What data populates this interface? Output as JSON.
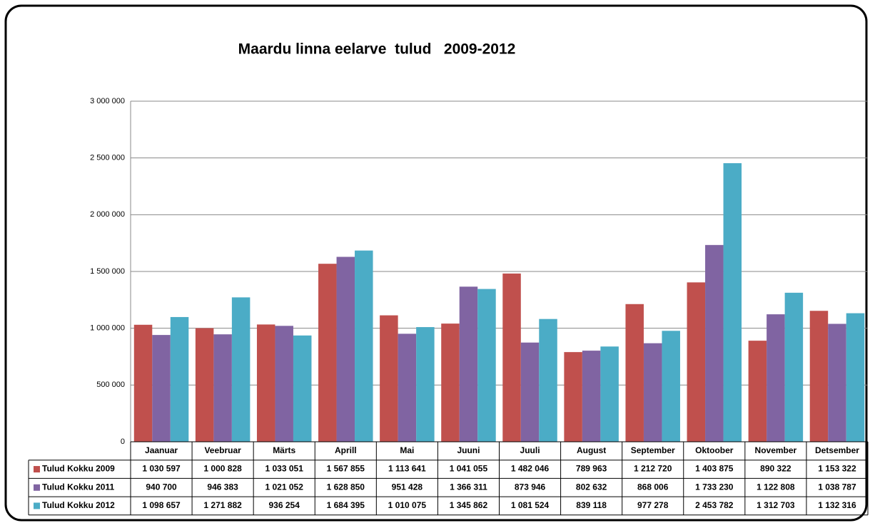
{
  "chart_data": {
    "type": "bar",
    "title": "Maardu linna eelarve  tulud   2009-2012",
    "categories": [
      "Jaanuar",
      "Veebruar",
      "Märts",
      "Aprill",
      "Mai",
      "Juuni",
      "Juuli",
      "August",
      "September",
      "Oktoober",
      "November",
      "Detsember"
    ],
    "series": [
      {
        "name": "Tulud Kokku 2009",
        "color": "#c0504d",
        "values": [
          1030597,
          1000828,
          1033051,
          1567855,
          1113641,
          1041055,
          1482046,
          789963,
          1212720,
          1403875,
          890322,
          1153322
        ],
        "value_labels": [
          "1 030 597",
          "1 000 828",
          "1 033 051",
          "1 567 855",
          "1 113 641",
          "1 041 055",
          "1 482 046",
          "789 963",
          "1 212 720",
          "1 403 875",
          "890 322",
          "1 153 322"
        ]
      },
      {
        "name": "Tulud Kokku 2011",
        "color": "#8064a2",
        "values": [
          940700,
          946383,
          1021052,
          1628850,
          951428,
          1366311,
          873946,
          802632,
          868006,
          1733230,
          1122808,
          1038787
        ],
        "value_labels": [
          "940 700",
          "946 383",
          "1 021 052",
          "1 628 850",
          "951 428",
          "1 366 311",
          "873 946",
          "802 632",
          "868 006",
          "1 733 230",
          "1 122 808",
          "1 038 787"
        ]
      },
      {
        "name": "Tulud Kokku 2012",
        "color": "#4bacc6",
        "values": [
          1098657,
          1271882,
          936254,
          1684395,
          1010075,
          1345862,
          1081524,
          839118,
          977278,
          2453782,
          1312703,
          1132316
        ],
        "value_labels": [
          "1 098 657",
          "1 271 882",
          "936 254",
          "1 684 395",
          "1 010 075",
          "1 345 862",
          "1 081 524",
          "839 118",
          "977 278",
          "2 453 782",
          "1 312 703",
          "1 132 316"
        ]
      }
    ],
    "ylim": [
      0,
      3000000
    ],
    "yticks": [
      0,
      {
        "value": 500000,
        "label": "500 000"
      },
      {
        "value": 1000000,
        "label": "1 000 000"
      },
      {
        "value": 1500000,
        "label": "1 500 000"
      },
      {
        "value": 2000000,
        "label": "2 000 000"
      },
      {
        "value": 2500000,
        "label": "2 500 000"
      },
      {
        "value": 3000000,
        "label": "3 000 000"
      }
    ],
    "grid": true
  }
}
